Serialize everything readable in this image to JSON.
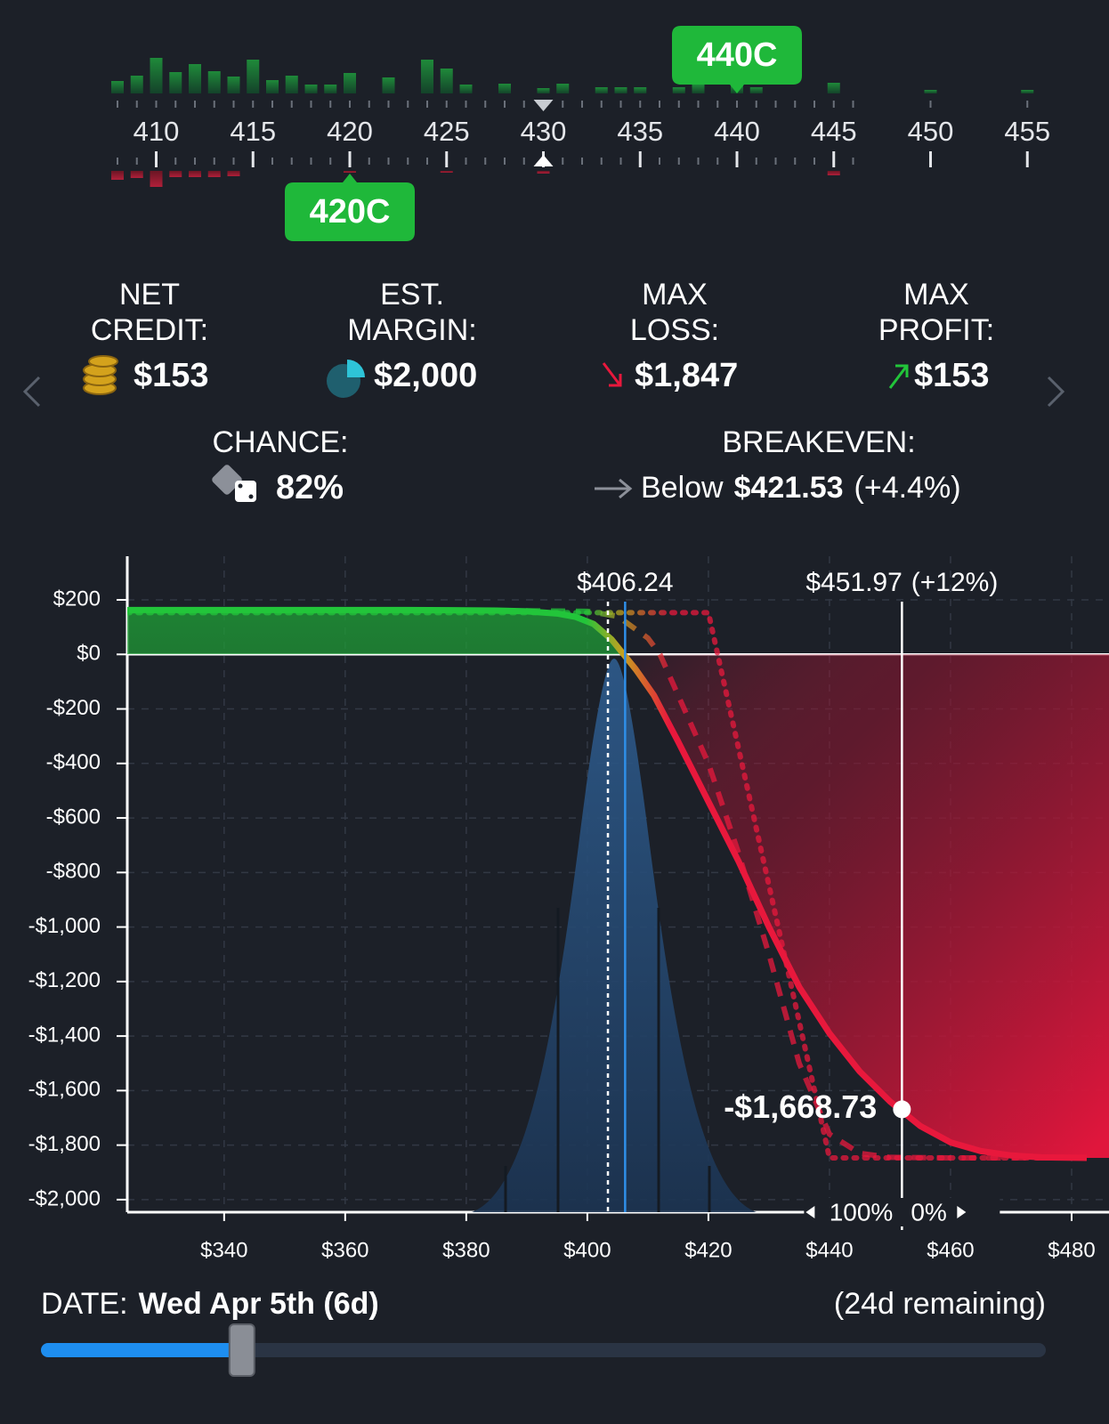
{
  "strike_ladder": {
    "ticks": [
      410,
      415,
      420,
      425,
      430,
      435,
      440,
      445,
      450,
      455
    ],
    "underlying_strike": 430,
    "strikes": [
      408,
      409,
      410,
      411,
      412,
      413,
      414,
      415,
      416,
      417,
      418,
      419,
      420,
      421,
      422,
      423,
      424,
      425,
      426,
      427,
      428,
      429,
      430,
      431,
      432,
      433,
      434,
      435,
      436,
      437,
      438,
      439,
      440,
      441,
      442,
      443,
      444,
      445,
      446,
      450,
      455
    ],
    "call_interest": [
      14,
      20,
      40,
      24,
      33,
      25,
      19,
      38,
      15,
      20,
      10,
      10,
      23,
      0,
      18,
      0,
      38,
      28,
      10,
      0,
      11,
      0,
      6,
      11,
      0,
      7,
      7,
      7,
      0,
      7,
      10,
      0,
      10,
      7,
      0,
      0,
      0,
      12,
      0,
      4,
      4
    ],
    "put_interest": [
      10,
      8,
      18,
      7,
      7,
      7,
      6,
      0,
      0,
      0,
      0,
      0,
      2,
      0,
      0,
      0,
      0,
      2,
      0,
      0,
      0,
      0,
      3,
      0,
      0,
      0,
      0,
      0,
      0,
      0,
      0,
      0,
      0,
      0,
      0,
      0,
      0,
      5,
      0,
      0,
      0
    ],
    "legs": [
      {
        "label": "440C",
        "strike": 440,
        "side": "top"
      },
      {
        "label": "420C",
        "strike": 420,
        "side": "bottom"
      }
    ]
  },
  "stats": [
    {
      "label": [
        "NET",
        "CREDIT:"
      ],
      "value": "$153"
    },
    {
      "label": [
        "EST.",
        "MARGIN:"
      ],
      "value": "$2,000"
    },
    {
      "label": [
        "MAX",
        "LOSS:"
      ],
      "value": "$1,847"
    },
    {
      "label": [
        "MAX",
        "PROFIT:"
      ],
      "value": "$153"
    }
  ],
  "chance": {
    "label": "CHANCE:",
    "value": "82%"
  },
  "breakeven": {
    "label": "BREAKEVEN:",
    "direction": "Below",
    "price": "$421.53",
    "change": "(+4.4%)"
  },
  "chart_data": {
    "type": "line",
    "xlim": [
      324,
      482.5
    ],
    "ylim": [
      -2046,
      360
    ],
    "xticks": [
      {
        "value": 340,
        "label": "$340"
      },
      {
        "value": 360,
        "label": "$360"
      },
      {
        "value": 380,
        "label": "$380"
      },
      {
        "value": 400,
        "label": "$400"
      },
      {
        "value": 420,
        "label": "$420"
      },
      {
        "value": 440,
        "label": "$440"
      },
      {
        "value": 460,
        "label": "$460"
      },
      {
        "value": 480,
        "label": "$480"
      }
    ],
    "yticks": [
      {
        "value": 200,
        "label": "$200"
      },
      {
        "value": 0,
        "label": "$0"
      },
      {
        "value": -200,
        "label": "-$200"
      },
      {
        "value": -400,
        "label": "-$400"
      },
      {
        "value": -600,
        "label": "-$600"
      },
      {
        "value": -800,
        "label": "-$800"
      },
      {
        "value": -1000,
        "label": "-$1,000"
      },
      {
        "value": -1200,
        "label": "-$1,200"
      },
      {
        "value": -1400,
        "label": "-$1,400"
      },
      {
        "value": -1600,
        "label": "-$1,600"
      },
      {
        "value": -1800,
        "label": "-$1,800"
      },
      {
        "value": -2000,
        "label": "-$2,000"
      }
    ],
    "grid": true,
    "profit_color": "#22c53a",
    "loss_color": "#e8183c",
    "series": [
      {
        "style": "dotted",
        "x": [
          324,
          420,
          421.53,
          440,
          482.5
        ],
        "values": [
          153,
          153,
          0,
          -1847,
          -1847
        ]
      },
      {
        "style": "dashed",
        "x": [
          324,
          390,
          400,
          405,
          410,
          412,
          415,
          420,
          425,
          430,
          435,
          440,
          445,
          450,
          460,
          482.5
        ],
        "values": [
          160,
          160,
          158,
          140,
          60,
          0,
          -150,
          -400,
          -730,
          -1100,
          -1500,
          -1760,
          -1830,
          -1845,
          -1847,
          -1847
        ]
      },
      {
        "style": "solid",
        "x": [
          324,
          370,
          385,
          390,
          395,
          398,
          401,
          404,
          406,
          408,
          411,
          415,
          420,
          425,
          430,
          435,
          440,
          445,
          450,
          455,
          460,
          465,
          470,
          475,
          482.5
        ],
        "values": [
          163,
          163,
          161,
          158,
          150,
          138,
          112,
          55,
          0,
          -55,
          -150,
          -320,
          -540,
          -760,
          -1000,
          -1220,
          -1390,
          -1530,
          -1640,
          -1730,
          -1790,
          -1822,
          -1838,
          -1845,
          -1847
        ]
      }
    ],
    "current_price": {
      "value": 406.24,
      "label": "$406.24",
      "color": "#2f8fe8"
    },
    "reference_line": 403.4,
    "cursor": {
      "x": 451.97,
      "label": "$451.97",
      "change": "(+12%)",
      "value": -1668.73,
      "value_label": "-$1,668.73",
      "left": "100%",
      "right": "0%"
    }
  },
  "date": {
    "label": "DATE:",
    "value": "Wed Apr 5th (6d)",
    "remaining": "(24d remaining)",
    "slider": {
      "value": 6,
      "min": 0,
      "max": 30
    }
  }
}
